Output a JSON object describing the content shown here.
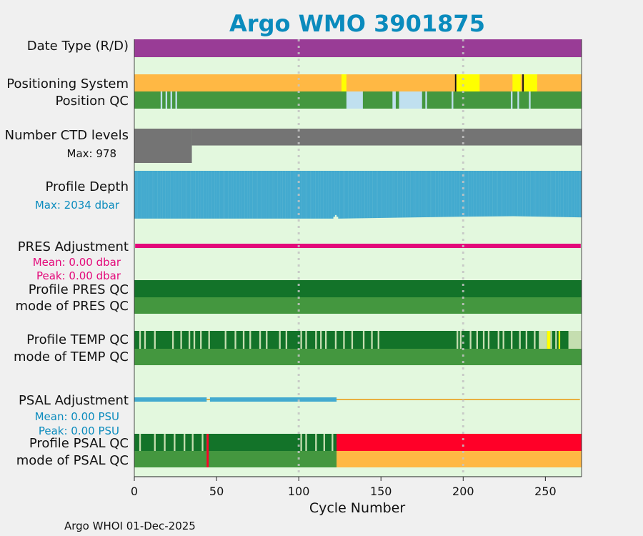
{
  "title": "Argo WMO 3901875",
  "footer": "Argo WHOI 01-Dec-2025",
  "colors": {
    "title": "#0a8bbd",
    "panel_bg": "#e3f8de",
    "date_type": "#993c96",
    "positioning": "#ffb844",
    "positioning_alt": "#ffff00",
    "position_qc_good": "#44973f",
    "position_qc_light": "#c0e0ef",
    "ctd_levels": "#747474",
    "profile_depth": "#43aacf",
    "pres_adjustment": "#e3097a",
    "qc_dark": "#137329",
    "qc_mode": "#44973f",
    "qc_light": "#c5deb0",
    "psal_adjustment": "#43aacf",
    "psal_adjustment_line": "#e8b040",
    "psal_bad": "#ff0028",
    "psal_mode_orange": "#ffb844",
    "dashed_grid": "#c4c4c4",
    "mean_peak_pres": "#e3097a",
    "mean_peak_psal": "#0a8bbd"
  },
  "rows": {
    "date_type": "Date Type (R/D)",
    "positioning_system": "Positioning System",
    "position_qc": "Position QC",
    "ctd_levels": "Number CTD levels",
    "ctd_max": "Max: 978",
    "profile_depth": "Profile Depth",
    "depth_max": "Max: 2034 dbar",
    "pres_adjustment": "PRES Adjustment",
    "pres_mean": "Mean: 0.00 dbar",
    "pres_peak": "Peak: 0.00 dbar",
    "profile_pres_qc": "Profile PRES QC",
    "mode_pres_qc": "mode of PRES QC",
    "profile_temp_qc": "Profile TEMP QC",
    "mode_temp_qc": "mode of TEMP QC",
    "psal_adjustment": "PSAL Adjustment",
    "psal_mean": "Mean: 0.00 PSU",
    "psal_peak": "Peak: 0.00 PSU",
    "profile_psal_qc": "Profile PSAL QC",
    "mode_psal_qc": "mode of PSAL QC"
  },
  "chart_data": {
    "type": "heatmap",
    "title": "Argo WMO 3901875",
    "xlabel": "Cycle Number",
    "xlim": [
      0,
      272
    ],
    "xticks": [
      0,
      50,
      100,
      150,
      200,
      250
    ],
    "vertical_gridlines": [
      100,
      200
    ],
    "n_cycles": 272,
    "ctd_levels_max": 978,
    "profile_depth_max": 2034,
    "ctd_levels_steps": [
      {
        "from": 0,
        "to": 35,
        "value": 978
      },
      {
        "from": 35,
        "to": 272,
        "value": 480
      }
    ],
    "profile_depth_profile": [
      {
        "cycle": 0,
        "depth": 2000
      },
      {
        "cycle": 120,
        "depth": 2000
      },
      {
        "cycle": 122,
        "depth": 1850
      },
      {
        "cycle": 124,
        "depth": 2000
      },
      {
        "cycle": 170,
        "depth": 1950
      },
      {
        "cycle": 200,
        "depth": 1920
      },
      {
        "cycle": 230,
        "depth": 1900
      },
      {
        "cycle": 272,
        "depth": 1950
      }
    ],
    "positioning_system_alt_cycles": [
      [
        126,
        129
      ],
      [
        196,
        210
      ],
      [
        230,
        235
      ],
      [
        237,
        245
      ]
    ],
    "positioning_system_marks": [
      195,
      236
    ],
    "position_qc_light_cycles": [
      [
        16,
        17
      ],
      [
        19,
        20
      ],
      [
        22,
        23
      ],
      [
        25,
        26
      ],
      [
        129,
        139
      ],
      [
        157,
        159
      ],
      [
        161,
        175
      ],
      [
        177,
        178
      ],
      [
        193,
        194
      ],
      [
        229,
        230
      ],
      [
        233,
        234
      ],
      [
        240,
        241
      ]
    ],
    "temp_qc_light_cycles": [
      [
        3,
        4
      ],
      [
        6,
        7
      ],
      [
        12,
        13
      ],
      [
        23,
        24
      ],
      [
        28,
        29
      ],
      [
        33,
        34
      ],
      [
        36,
        37
      ],
      [
        40,
        41
      ],
      [
        45,
        46
      ],
      [
        55,
        56
      ],
      [
        61,
        62
      ],
      [
        66,
        67
      ],
      [
        70,
        71
      ],
      [
        76,
        77
      ],
      [
        80,
        81
      ],
      [
        88,
        89
      ],
      [
        92,
        93
      ],
      [
        101,
        102
      ],
      [
        104,
        105
      ],
      [
        110,
        111
      ],
      [
        113,
        114
      ],
      [
        116,
        117
      ],
      [
        122,
        123
      ],
      [
        127,
        128
      ],
      [
        132,
        133
      ],
      [
        139,
        140
      ],
      [
        144,
        145
      ],
      [
        148,
        149
      ],
      [
        196,
        197
      ],
      [
        198,
        199
      ],
      [
        204,
        205
      ],
      [
        208,
        209
      ],
      [
        212,
        213
      ],
      [
        215,
        216
      ],
      [
        221,
        222
      ],
      [
        224,
        225
      ],
      [
        229,
        230
      ],
      [
        234,
        235
      ],
      [
        238,
        239
      ],
      [
        243,
        244
      ],
      [
        246,
        251
      ],
      [
        253,
        254
      ],
      [
        256,
        257
      ],
      [
        264,
        272
      ]
    ],
    "temp_qc_yellow_cycles": [
      [
        251,
        253
      ],
      [
        258,
        259
      ]
    ],
    "psal_qc_light_cycles": [
      [
        3,
        4
      ],
      [
        12,
        13
      ],
      [
        18,
        19
      ],
      [
        24,
        25
      ],
      [
        30,
        31
      ],
      [
        35,
        36
      ],
      [
        41,
        42
      ],
      [
        44,
        45
      ],
      [
        101,
        102
      ],
      [
        104,
        105
      ],
      [
        110,
        111
      ],
      [
        115,
        116
      ],
      [
        120,
        121
      ]
    ],
    "psal_qc_red_cycle": 44,
    "psal_bad_from": 123,
    "psal_adjustment_segments": [
      [
        0,
        44
      ],
      [
        46,
        123
      ]
    ]
  }
}
